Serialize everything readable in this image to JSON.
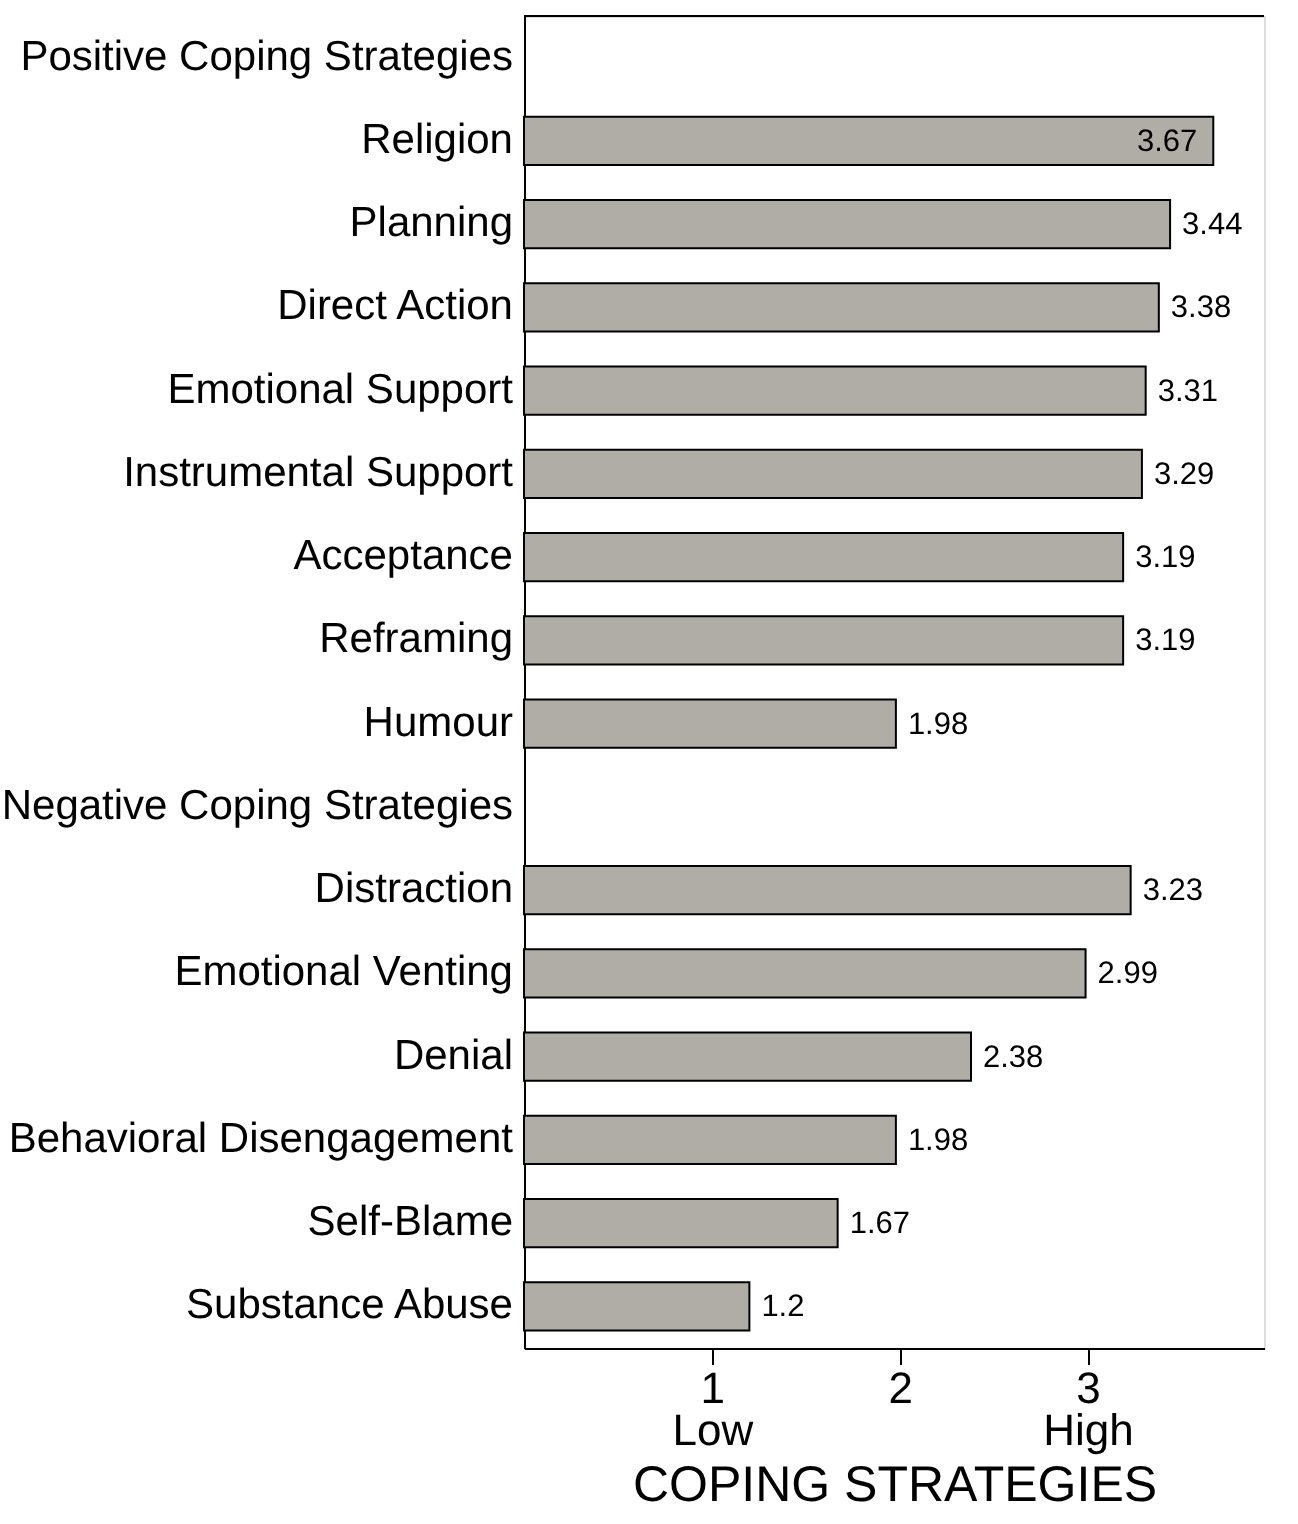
{
  "chart_data": {
    "type": "bar",
    "orientation": "horizontal",
    "categories": [
      "Positive Coping Strategies",
      "Religion",
      "Planning",
      "Direct Action",
      "Emotional Support",
      "Instrumental Support",
      "Acceptance",
      "Reframing",
      "Humour",
      "Negative Coping Strategies",
      "Distraction",
      "Emotional Venting",
      "Denial",
      "Behavioral Disengagement",
      "Self-Blame",
      "Substance Abuse"
    ],
    "values": [
      null,
      3.67,
      3.44,
      3.38,
      3.31,
      3.29,
      3.19,
      3.19,
      1.98,
      null,
      3.23,
      2.99,
      2.38,
      1.98,
      1.67,
      1.2
    ],
    "color": "#b0aca6",
    "xlim": [
      0,
      3.94
    ],
    "xticks": [
      {
        "value": 1,
        "label": "1\nLow"
      },
      2,
      {
        "value": 3,
        "label": "3\nHigh"
      }
    ],
    "xlabel": "COPING STRATEGIES",
    "data_labels": true,
    "grid": false
  }
}
